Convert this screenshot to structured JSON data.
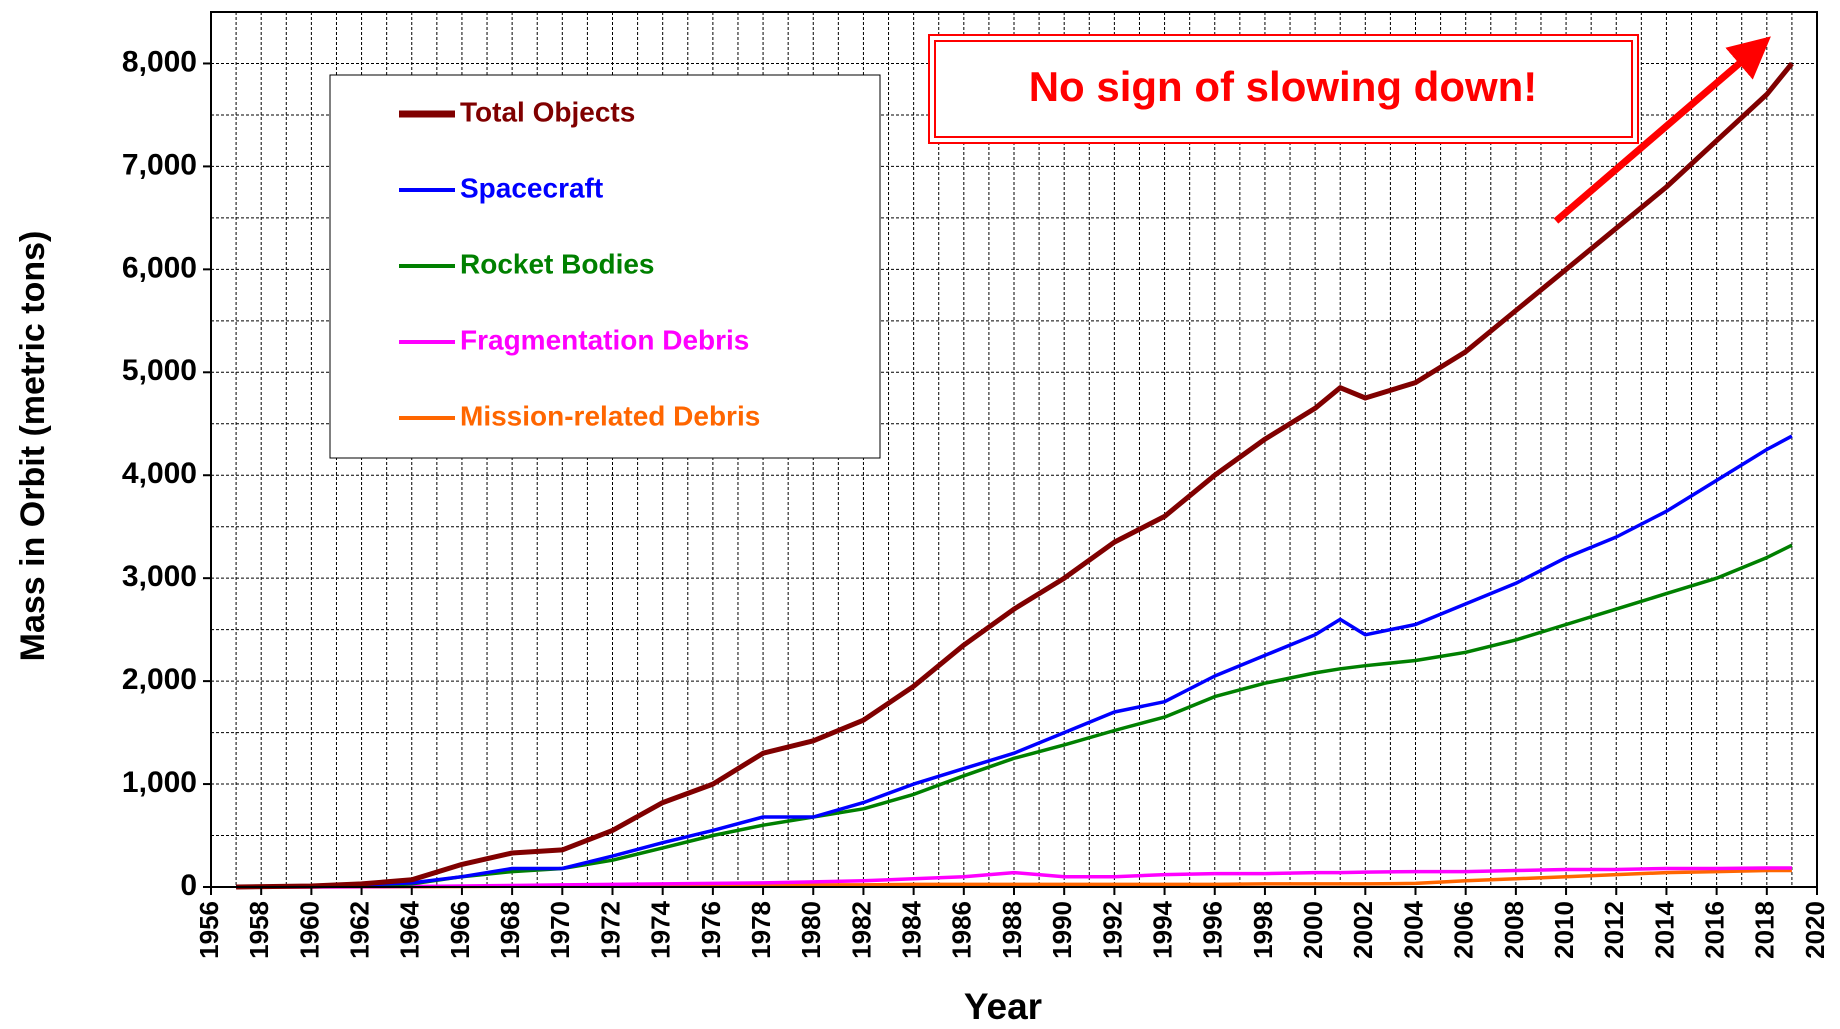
{
  "chart_data": {
    "type": "line",
    "x_label": "Year",
    "y_label": "Mass in Orbit (metric tons)",
    "annotation": "No sign of slowing down!",
    "x": [
      1957,
      1960,
      1962,
      1964,
      1966,
      1968,
      1970,
      1972,
      1974,
      1976,
      1978,
      1980,
      1982,
      1984,
      1986,
      1988,
      1990,
      1992,
      1994,
      1996,
      1998,
      2000,
      2001,
      2002,
      2004,
      2006,
      2008,
      2010,
      2012,
      2014,
      2016,
      2018,
      2019
    ],
    "series": [
      {
        "name": "Total Objects",
        "color": "#800000",
        "values": [
          0,
          10,
          30,
          70,
          220,
          330,
          360,
          550,
          820,
          1000,
          1300,
          1420,
          1620,
          1950,
          2350,
          2700,
          3000,
          3350,
          3600,
          4000,
          4350,
          4650,
          4850,
          4750,
          4900,
          5200,
          5600,
          6000,
          6400,
          6800,
          7250,
          7700,
          8000
        ]
      },
      {
        "name": "Spacecraft",
        "color": "#0000ff",
        "values": [
          0,
          5,
          20,
          40,
          100,
          180,
          180,
          300,
          430,
          550,
          680,
          680,
          820,
          1000,
          1150,
          1300,
          1500,
          1700,
          1800,
          2050,
          2250,
          2450,
          2600,
          2450,
          2550,
          2750,
          2950,
          3200,
          3400,
          3650,
          3950,
          4250,
          4380
        ]
      },
      {
        "name": "Rocket Bodies",
        "color": "#008000",
        "values": [
          0,
          5,
          10,
          30,
          100,
          150,
          180,
          260,
          380,
          500,
          600,
          680,
          760,
          900,
          1080,
          1250,
          1380,
          1520,
          1650,
          1850,
          1980,
          2080,
          2120,
          2150,
          2200,
          2280,
          2400,
          2550,
          2700,
          2850,
          3000,
          3200,
          3320
        ]
      },
      {
        "name": "Fragmentation Debris",
        "color": "#ff00ff",
        "values": [
          0,
          0,
          2,
          5,
          10,
          15,
          20,
          25,
          30,
          35,
          40,
          50,
          60,
          80,
          100,
          140,
          100,
          100,
          120,
          130,
          130,
          140,
          140,
          145,
          150,
          150,
          160,
          170,
          170,
          180,
          180,
          185,
          185
        ]
      },
      {
        "name": "Mission-related Debris",
        "color": "#ff6600",
        "values": [
          0,
          0,
          1,
          3,
          5,
          8,
          10,
          12,
          15,
          15,
          15,
          20,
          20,
          25,
          25,
          25,
          25,
          25,
          25,
          25,
          30,
          30,
          30,
          30,
          35,
          60,
          80,
          100,
          120,
          140,
          150,
          160,
          160
        ]
      }
    ],
    "xlim": [
      1956,
      2020
    ],
    "xticks": [
      1956,
      1958,
      1960,
      1962,
      1964,
      1966,
      1968,
      1970,
      1972,
      1974,
      1976,
      1978,
      1980,
      1982,
      1984,
      1986,
      1988,
      1990,
      1992,
      1994,
      1996,
      1998,
      2000,
      2002,
      2004,
      2006,
      2008,
      2010,
      2012,
      2014,
      2016,
      2018,
      2020
    ],
    "xminorticks": [
      1957,
      1959,
      1961,
      1963,
      1965,
      1967,
      1969,
      1971,
      1973,
      1975,
      1977,
      1979,
      1981,
      1983,
      1985,
      1987,
      1989,
      1991,
      1993,
      1995,
      1997,
      1999,
      2001,
      2003,
      2005,
      2007,
      2009,
      2011,
      2013,
      2015,
      2017,
      2019
    ],
    "ylim": [
      0,
      8500
    ],
    "yticks": [
      0,
      {
        "value": 1000,
        "label": "1,000"
      },
      {
        "value": 2000,
        "label": "2,000"
      },
      {
        "value": 3000,
        "label": "3,000"
      },
      {
        "value": 4000,
        "label": "4,000"
      },
      {
        "value": 5000,
        "label": "5,000"
      },
      {
        "value": 6000,
        "label": "6,000"
      },
      {
        "value": 7000,
        "label": "7,000"
      },
      {
        "value": 8000,
        "label": "8,000"
      }
    ],
    "yminorticks": [
      500,
      1500,
      2500,
      3500,
      4500,
      5500,
      6500,
      7500
    ],
    "grid": true,
    "legend": "upper left"
  }
}
